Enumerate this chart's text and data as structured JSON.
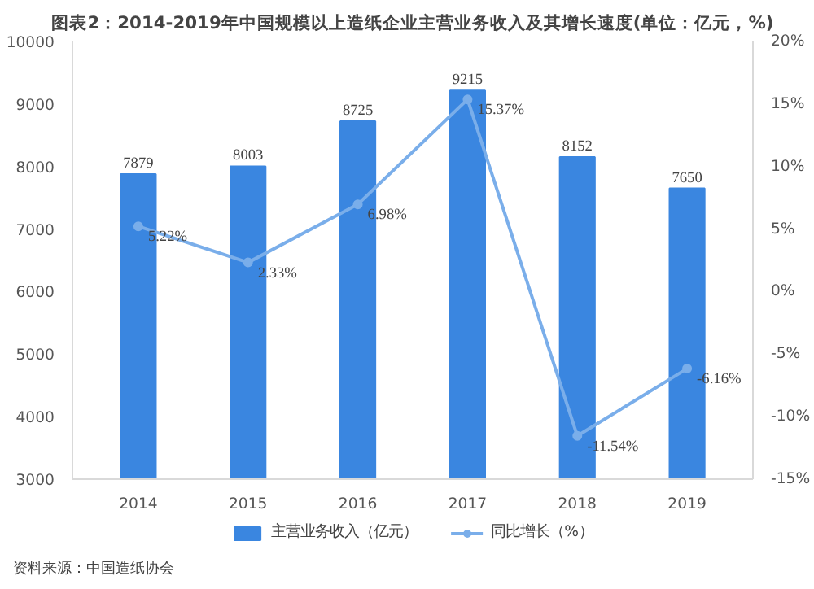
{
  "chart_data": {
    "type": "bar",
    "title": "图表2：2014-2019年中国规模以上造纸企业主营业务收入及其增长速度(单位：亿元，%)",
    "categories": [
      "2014",
      "2015",
      "2016",
      "2017",
      "2018",
      "2019"
    ],
    "series": [
      {
        "name": "主营业务收入（亿元）",
        "color": "#3a86e0",
        "values": [
          7879,
          8003,
          8725,
          9215,
          8152,
          7650
        ],
        "value_labels": [
          "7879",
          "8003",
          "8725",
          "9215",
          "8152",
          "7650"
        ]
      },
      {
        "name": "同比增长（%）",
        "type": "line",
        "axis": "y2",
        "color": "#7aaeea",
        "marker": "circle",
        "values": [
          5.22,
          2.33,
          6.98,
          15.37,
          -11.54,
          -6.16
        ],
        "value_labels": [
          "5.22%",
          "2.33%",
          "6.98%",
          "15.37%",
          "-11.54%",
          "-6.16%"
        ]
      }
    ],
    "ylim": [
      3000,
      10000
    ],
    "yticks": [
      3000,
      4000,
      5000,
      6000,
      7000,
      8000,
      9000,
      10000
    ],
    "y2lim": [
      -15,
      20
    ],
    "y2ticks": [
      {
        "value": -15,
        "label": "-15%"
      },
      {
        "value": -10,
        "label": "-10%"
      },
      {
        "value": -5,
        "label": "-5%"
      },
      {
        "value": 0,
        "label": "0%"
      },
      {
        "value": 5,
        "label": "5%"
      },
      {
        "value": 10,
        "label": "10%"
      },
      {
        "value": 15,
        "label": "15%"
      },
      {
        "value": 20,
        "label": "20%"
      }
    ],
    "legend": "bottom",
    "grid": false,
    "annotations": [
      "资料来源：中国造纸协会"
    ]
  }
}
